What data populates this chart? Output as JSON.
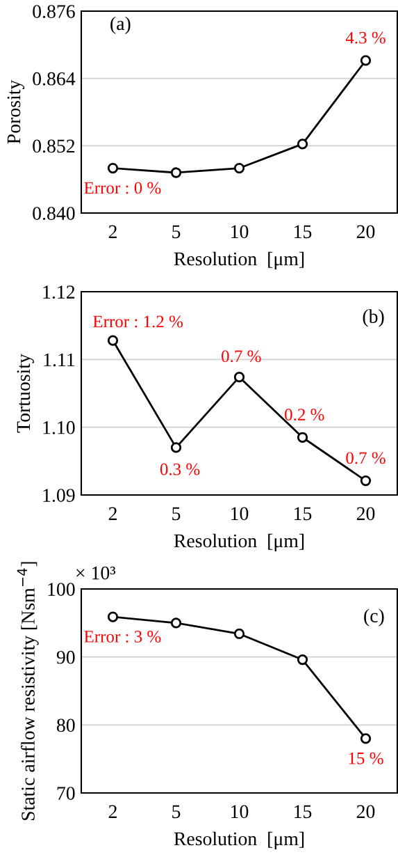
{
  "chart_data": [
    {
      "type": "line",
      "ylabel": "Porosity",
      "xlabel": "Resolution  [μm]",
      "categories": [
        "2",
        "5",
        "10",
        "15",
        "20"
      ],
      "series": [
        {
          "color": "#000000",
          "values": [
            0.848,
            0.8472,
            0.848,
            0.8523,
            0.8672
          ]
        }
      ],
      "ylim": [
        0.84,
        0.876
      ],
      "yticks": [
        {
          "value": 0.84,
          "label": "0.840"
        },
        0.852,
        0.864,
        0.876
      ],
      "grid": "y",
      "marker": "circle",
      "line_style": "solid",
      "annotations": [
        "(a)",
        {
          "text": "Error : 0 %",
          "x": "2",
          "y": 0.848
        },
        {
          "text": "4.3 %",
          "x": "20",
          "y": 0.8672
        }
      ]
    },
    {
      "type": "line",
      "ylabel": "Tortuosity",
      "xlabel": "Resolution  [μm]",
      "categories": [
        "2",
        "5",
        "10",
        "15",
        "20"
      ],
      "series": [
        {
          "color": "#000000",
          "values": [
            1.1128,
            1.097,
            1.1074,
            1.0985,
            1.0921
          ]
        }
      ],
      "ylim": [
        1.09,
        1.12
      ],
      "yticks": [
        1.09,
        {
          "value": 1.1,
          "label": "1.10"
        },
        1.11,
        1.12
      ],
      "grid": "y",
      "marker": "circle",
      "line_style": "solid",
      "annotations": [
        "(b)",
        {
          "text": "Error : 1.2 %",
          "x": "2",
          "y": 1.1128
        },
        {
          "text": "0.3 %",
          "x": "5",
          "y": 1.097
        },
        {
          "text": "0.7 %",
          "x": "10",
          "y": 1.1074
        },
        {
          "text": "0.2 %",
          "x": "15",
          "y": 1.0985
        },
        {
          "text": "0.7 %",
          "x": "20",
          "y": 1.0921
        }
      ]
    },
    {
      "type": "line",
      "ylabel": "Static airflow resistivity [Nsm$^{−4}$]",
      "xlabel": "Resolution  [μm]",
      "categories": [
        "2",
        "5",
        "10",
        "15",
        "20"
      ],
      "series": [
        {
          "color": "#000000",
          "values": [
            95.9,
            95.0,
            93.4,
            89.6,
            78.0
          ]
        }
      ],
      "ylim": [
        70,
        100
      ],
      "yticks": [
        70,
        80,
        90,
        100
      ],
      "grid": "y",
      "marker": "circle",
      "line_style": "solid",
      "annotations": [
        "× 10³",
        "(c)",
        {
          "text": "Error : 3 %",
          "x": "2",
          "y": 95.9
        },
        {
          "text": "15 %",
          "x": "20",
          "y": 78.0
        }
      ]
    }
  ]
}
